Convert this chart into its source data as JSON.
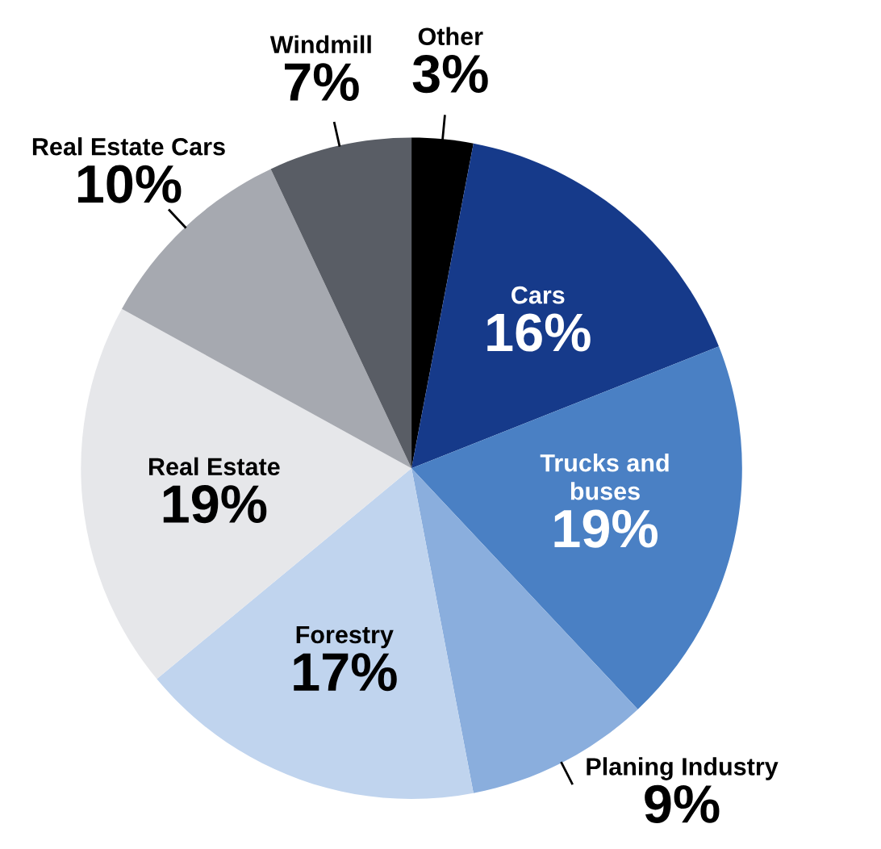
{
  "chart_data": {
    "type": "pie",
    "categories": [
      "Other",
      "Cars",
      "Trucks and\nbuses",
      "Planing Industry",
      "Forestry",
      "Real Estate",
      "Real Estate Cars",
      "Windmill"
    ],
    "values": [
      3,
      16,
      19,
      9,
      17,
      19,
      10,
      7
    ],
    "value_labels": [
      "3%",
      "16%",
      "19%",
      "9%",
      "17%",
      "19%",
      "10%",
      "7%"
    ],
    "colors": [
      "#000000",
      "#163a8a",
      "#4a80c4",
      "#8aaedd",
      "#c0d4ee",
      "#e6e7ea",
      "#a6a9b0",
      "#595d65"
    ],
    "legend": false
  }
}
